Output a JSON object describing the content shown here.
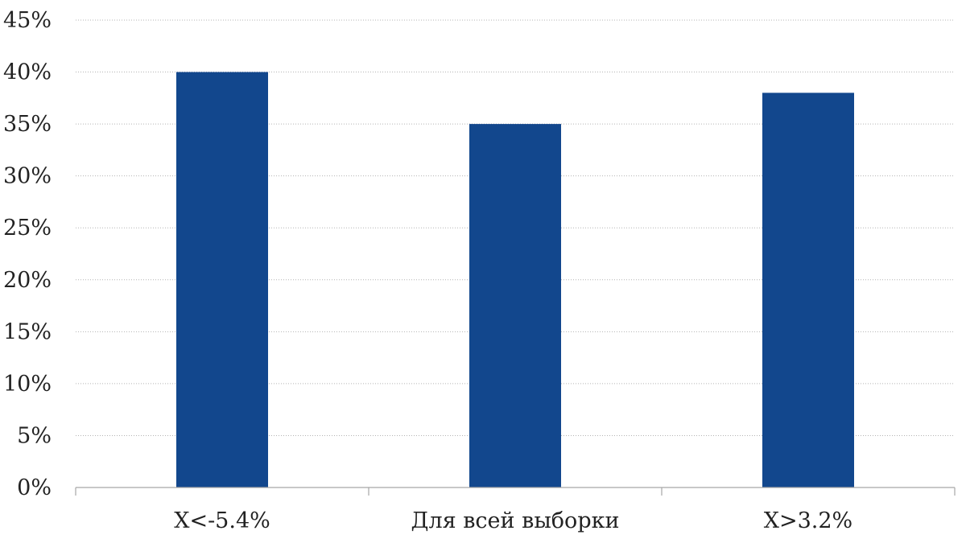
{
  "chart_data": {
    "type": "bar",
    "categories": [
      "X<-5.4%",
      "Для всей выборки",
      "X>3.2%"
    ],
    "values": [
      40,
      35,
      38
    ],
    "value_unit": "%",
    "ylim": [
      0,
      45
    ],
    "yticks": [
      0,
      5,
      10,
      15,
      20,
      25,
      30,
      35,
      40,
      45
    ],
    "ytick_labels": [
      "0%",
      "5%",
      "10%",
      "15%",
      "20%",
      "25%",
      "30%",
      "35%",
      "40%",
      "45%"
    ],
    "title": "",
    "xlabel": "",
    "ylabel": "",
    "grid": true,
    "legend": "none",
    "colors": {
      "bar": "#12478d",
      "grid": "#b3b3b3",
      "axis": "#a6a6a6",
      "text": "#222222"
    }
  }
}
